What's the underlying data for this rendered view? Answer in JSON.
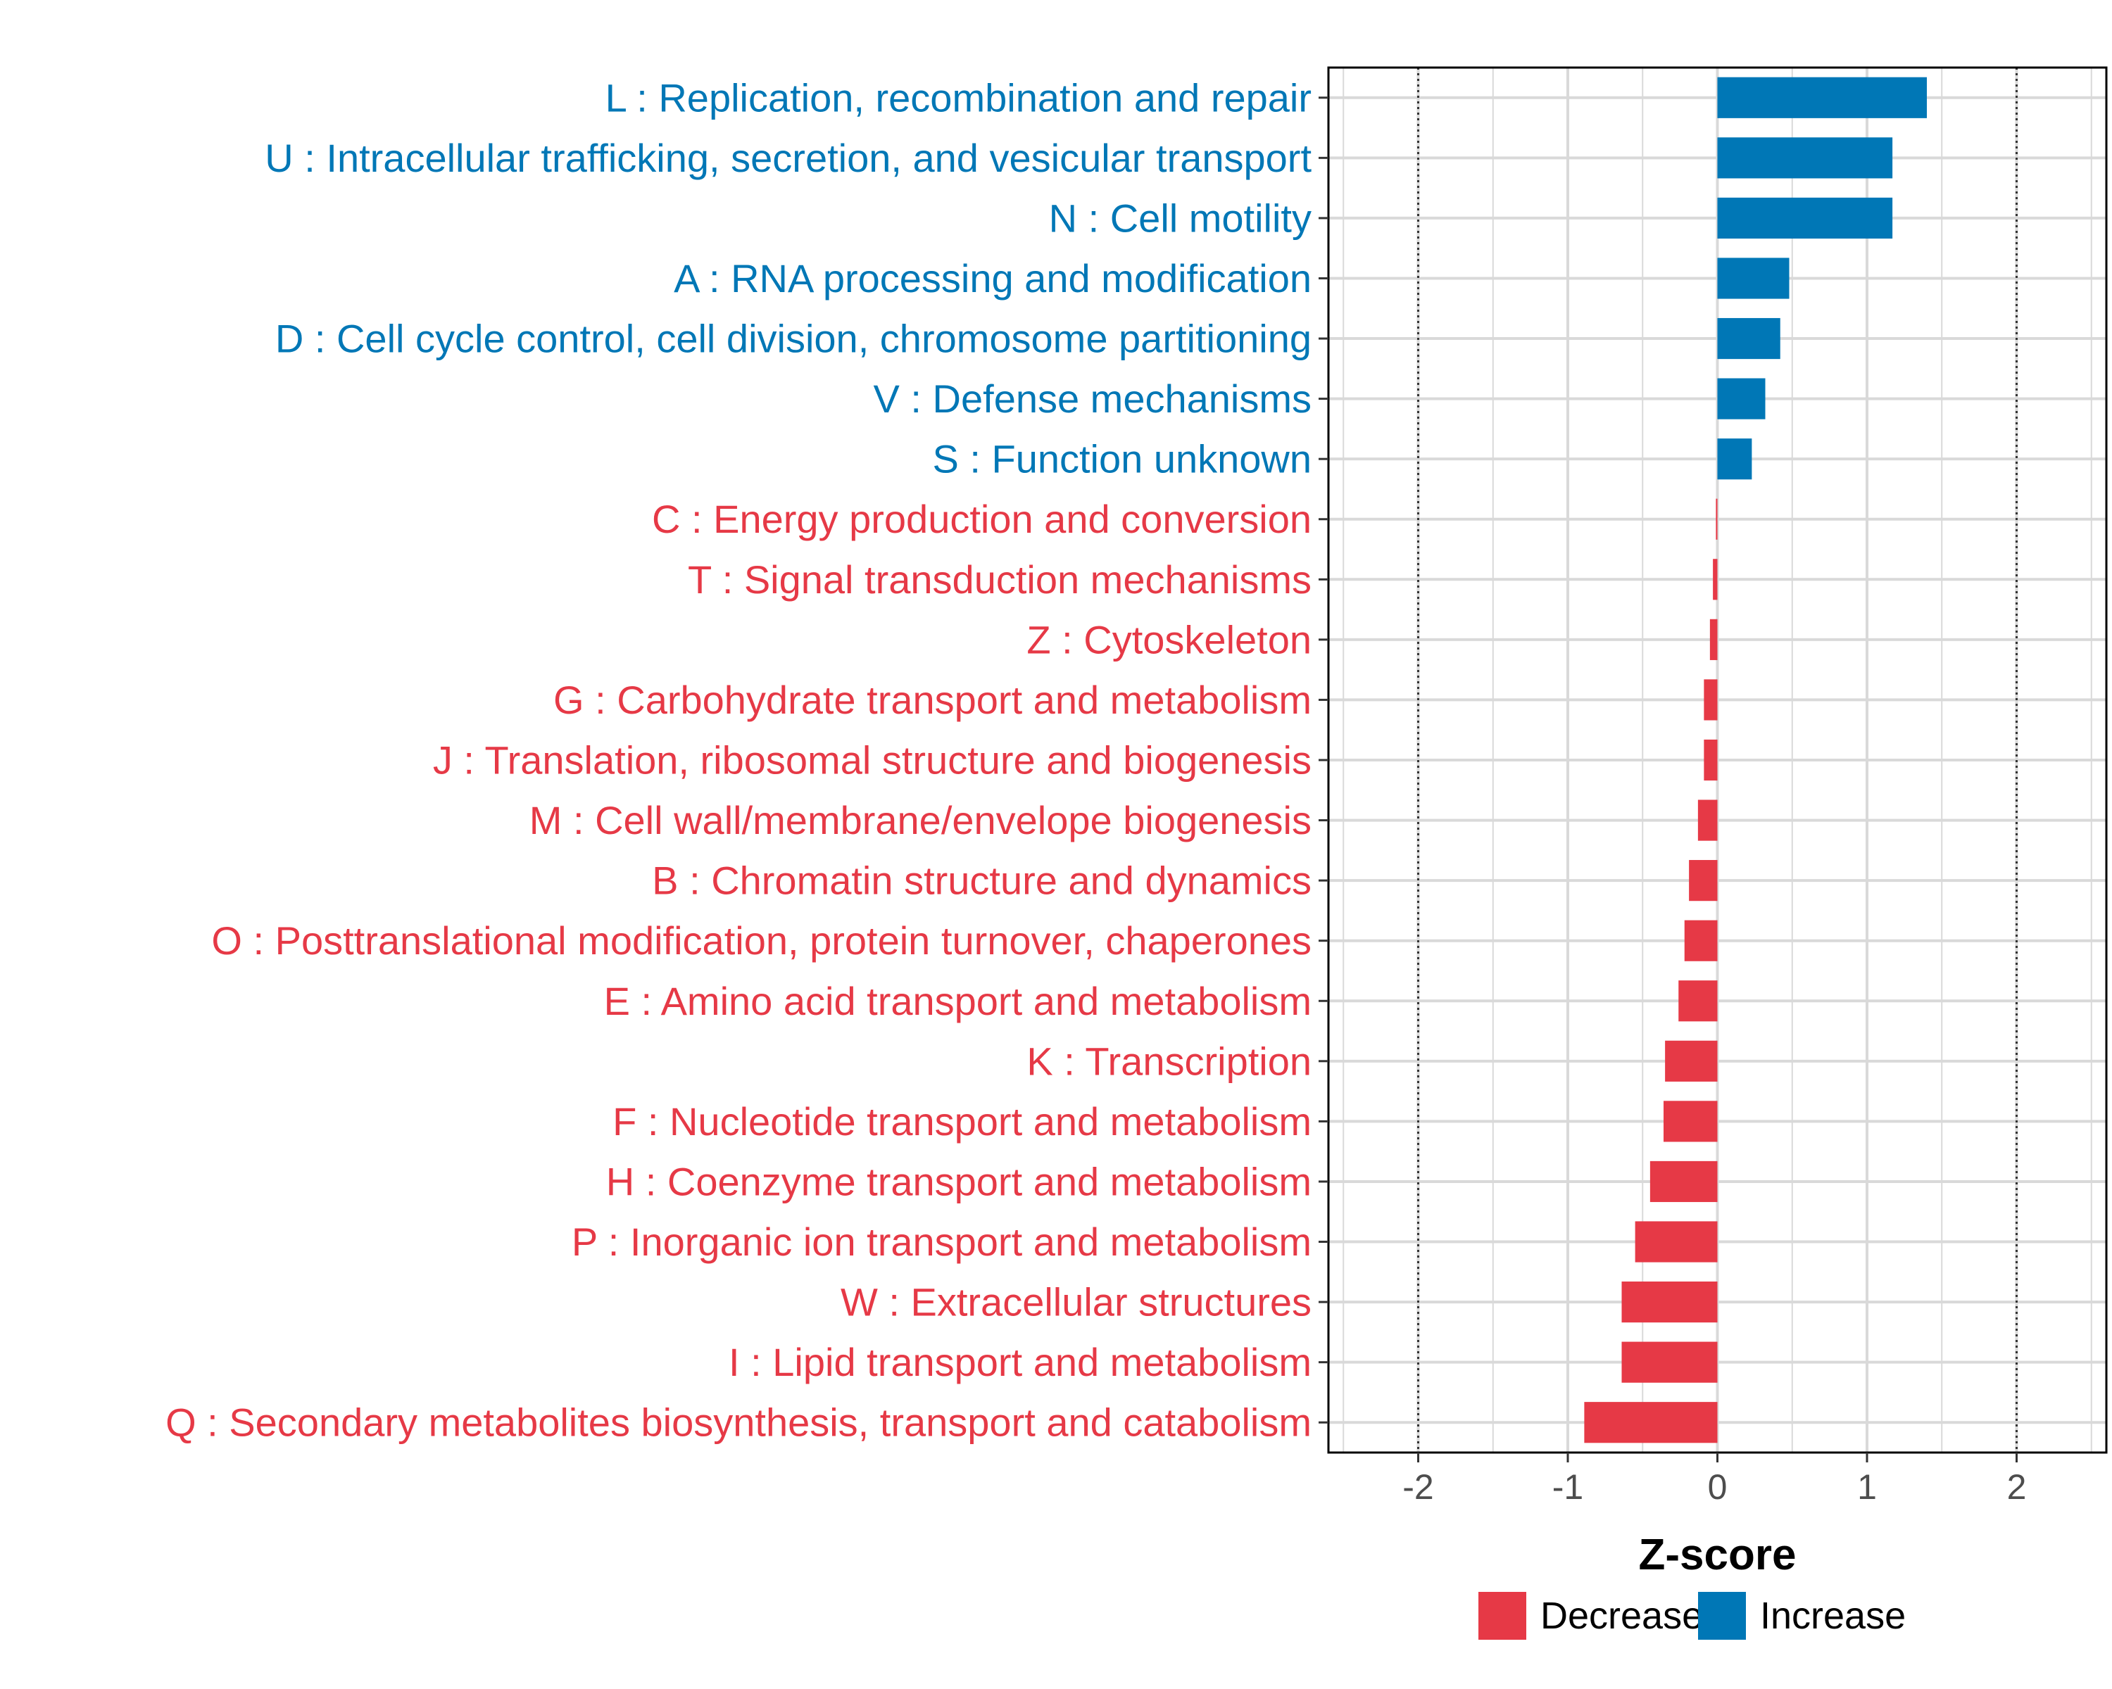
{
  "chart_data": {
    "type": "bar",
    "orientation": "horizontal",
    "xlabel": "Z-score",
    "xlim": [
      -2.6,
      2.6
    ],
    "xticks": [
      -2,
      -1,
      0,
      1,
      2
    ],
    "xtick_labels": [
      "-2",
      "-1",
      "0",
      "1",
      "2"
    ],
    "reference_lines": [
      -2,
      2
    ],
    "grid": true,
    "legend_position": "bottom-right",
    "colors": {
      "Decrease": "#e63946",
      "Increase": "#0077b6"
    },
    "legend": [
      {
        "name": "Decrease",
        "color": "#e63946"
      },
      {
        "name": "Increase",
        "color": "#0077b6"
      }
    ],
    "categories": [
      "L : Replication, recombination and repair",
      "U : Intracellular trafficking, secretion, and vesicular transport",
      "N : Cell motility",
      "A : RNA processing and modification",
      "D : Cell cycle control, cell division, chromosome partitioning",
      "V : Defense mechanisms",
      "S : Function unknown",
      "C : Energy production and conversion",
      "T : Signal transduction mechanisms",
      "Z : Cytoskeleton",
      "G : Carbohydrate transport and metabolism",
      "J : Translation, ribosomal structure and biogenesis",
      "M : Cell wall/membrane/envelope biogenesis",
      "B : Chromatin structure and dynamics",
      "O : Posttranslational modification, protein turnover, chaperones",
      "E : Amino acid transport and metabolism",
      "K : Transcription",
      "F : Nucleotide transport and metabolism",
      "H : Coenzyme transport and metabolism",
      "P : Inorganic ion transport and metabolism",
      "W : Extracellular structures",
      "I : Lipid transport and metabolism",
      "Q : Secondary metabolites biosynthesis, transport and catabolism"
    ],
    "values": [
      1.4,
      1.17,
      1.17,
      0.48,
      0.42,
      0.32,
      0.23,
      -0.01,
      -0.03,
      -0.05,
      -0.09,
      -0.09,
      -0.13,
      -0.19,
      -0.22,
      -0.26,
      -0.35,
      -0.36,
      -0.45,
      -0.55,
      -0.64,
      -0.64,
      -0.89
    ],
    "groups": [
      "Increase",
      "Increase",
      "Increase",
      "Increase",
      "Increase",
      "Increase",
      "Increase",
      "Decrease",
      "Decrease",
      "Decrease",
      "Decrease",
      "Decrease",
      "Decrease",
      "Decrease",
      "Decrease",
      "Decrease",
      "Decrease",
      "Decrease",
      "Decrease",
      "Decrease",
      "Decrease",
      "Decrease",
      "Decrease"
    ]
  }
}
